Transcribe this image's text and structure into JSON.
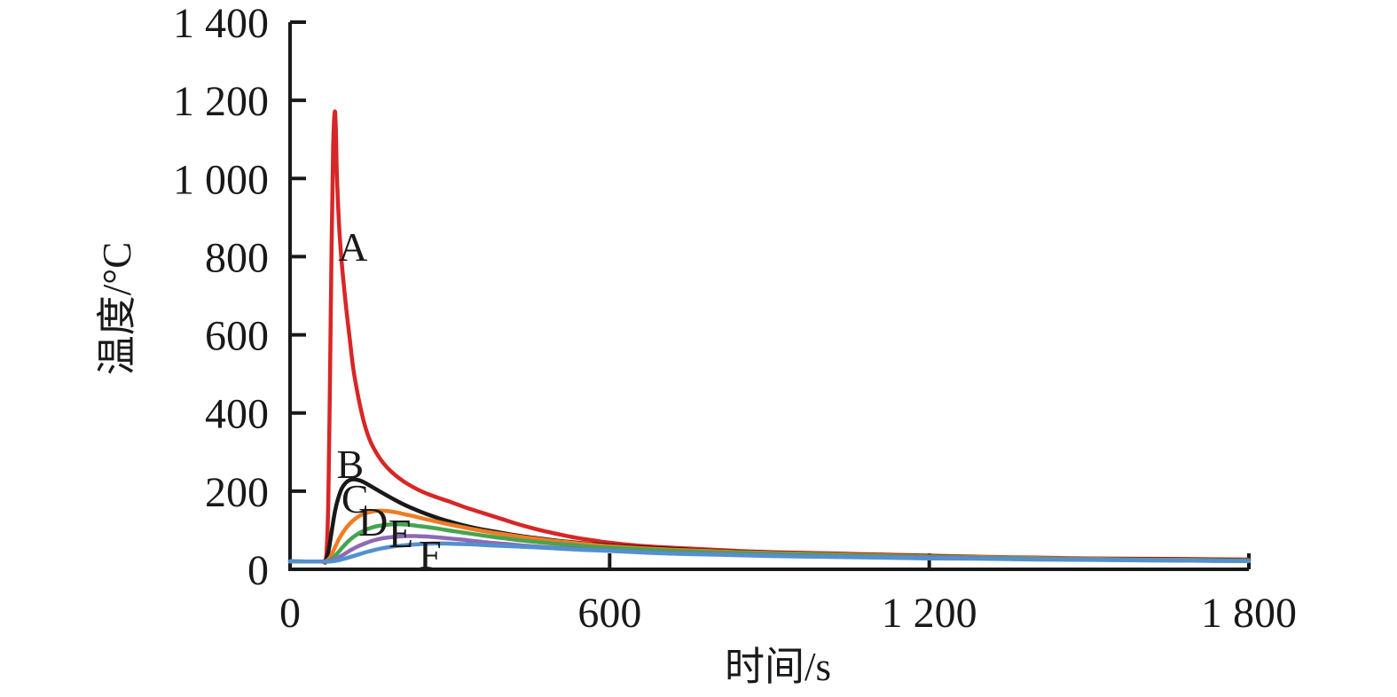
{
  "figure": {
    "background": "#ffffff",
    "axis_color": "#1a1818",
    "text_color": "#1a1818"
  },
  "chart_data": {
    "type": "line",
    "title": "",
    "xlabel": "时间/s",
    "ylabel": "温度/°C",
    "xlim": [
      0,
      1800
    ],
    "ylim": [
      0,
      1400
    ],
    "grid": false,
    "legend_position": "inline-curve-labels",
    "x_ticks": [
      {
        "value": 0,
        "label": "0"
      },
      {
        "value": 600,
        "label": "600"
      },
      {
        "value": 1200,
        "label": "1 200"
      },
      {
        "value": 1800,
        "label": "1 800"
      }
    ],
    "y_ticks": [
      {
        "value": 0,
        "label": "0"
      },
      {
        "value": 200,
        "label": "200"
      },
      {
        "value": 400,
        "label": "400"
      },
      {
        "value": 600,
        "label": "600"
      },
      {
        "value": 800,
        "label": "800"
      },
      {
        "value": 1000,
        "label": "1 000"
      },
      {
        "value": 1200,
        "label": "1 200"
      },
      {
        "value": 1400,
        "label": "1 400"
      }
    ],
    "series": [
      {
        "name": "A",
        "color": "#d82626",
        "peak": {
          "t": 84,
          "T": 1170
        },
        "label_pos": {
          "t": 118,
          "T": 826
        },
        "points": [
          [
            0,
            20
          ],
          [
            55,
            20
          ],
          [
            63,
            20
          ],
          [
            68,
            32
          ],
          [
            72,
            180
          ],
          [
            75,
            480
          ],
          [
            78,
            820
          ],
          [
            81,
            1080
          ],
          [
            84,
            1170
          ],
          [
            86,
            1130
          ],
          [
            88,
            1010
          ],
          [
            92,
            880
          ],
          [
            96,
            800
          ],
          [
            100,
            740
          ],
          [
            106,
            660
          ],
          [
            112,
            590
          ],
          [
            118,
            520
          ],
          [
            124,
            470
          ],
          [
            132,
            415
          ],
          [
            140,
            370
          ],
          [
            150,
            330
          ],
          [
            162,
            298
          ],
          [
            175,
            272
          ],
          [
            190,
            250
          ],
          [
            205,
            233
          ],
          [
            220,
            219
          ],
          [
            240,
            204
          ],
          [
            260,
            192
          ],
          [
            280,
            182
          ],
          [
            300,
            173
          ],
          [
            330,
            158
          ],
          [
            360,
            145
          ],
          [
            390,
            132
          ],
          [
            420,
            119
          ],
          [
            450,
            107
          ],
          [
            480,
            97
          ],
          [
            510,
            88
          ],
          [
            540,
            80
          ],
          [
            570,
            74
          ],
          [
            600,
            68
          ],
          [
            660,
            60
          ],
          [
            720,
            55
          ],
          [
            780,
            51
          ],
          [
            840,
            47
          ],
          [
            900,
            44
          ],
          [
            1000,
            41
          ],
          [
            1100,
            38
          ],
          [
            1200,
            35
          ],
          [
            1300,
            32
          ],
          [
            1400,
            30
          ],
          [
            1500,
            28
          ],
          [
            1600,
            27
          ],
          [
            1700,
            26
          ],
          [
            1800,
            25
          ]
        ]
      },
      {
        "name": "B",
        "color": "#1a1818",
        "peak": {
          "t": 122,
          "T": 230
        },
        "label_pos": {
          "t": 113,
          "T": 270
        },
        "points": [
          [
            0,
            20
          ],
          [
            58,
            20
          ],
          [
            66,
            22
          ],
          [
            72,
            45
          ],
          [
            78,
            95
          ],
          [
            84,
            145
          ],
          [
            90,
            180
          ],
          [
            97,
            207
          ],
          [
            105,
            222
          ],
          [
            113,
            229
          ],
          [
            122,
            230
          ],
          [
            132,
            227
          ],
          [
            145,
            218
          ],
          [
            160,
            206
          ],
          [
            178,
            192
          ],
          [
            195,
            179
          ],
          [
            215,
            165
          ],
          [
            235,
            153
          ],
          [
            255,
            142
          ],
          [
            278,
            131
          ],
          [
            300,
            122
          ],
          [
            330,
            111
          ],
          [
            360,
            102
          ],
          [
            390,
            95
          ],
          [
            420,
            88
          ],
          [
            450,
            82
          ],
          [
            480,
            77
          ],
          [
            510,
            72
          ],
          [
            540,
            68
          ],
          [
            570,
            64
          ],
          [
            600,
            61
          ],
          [
            660,
            56
          ],
          [
            720,
            52
          ],
          [
            780,
            48
          ],
          [
            840,
            45
          ],
          [
            900,
            43
          ],
          [
            1000,
            40
          ],
          [
            1100,
            37
          ],
          [
            1200,
            34
          ],
          [
            1300,
            31
          ],
          [
            1400,
            29
          ],
          [
            1500,
            27
          ],
          [
            1600,
            26
          ],
          [
            1700,
            25
          ],
          [
            1800,
            24
          ]
        ]
      },
      {
        "name": "C",
        "color": "#ee7c25",
        "peak": {
          "t": 167,
          "T": 150
        },
        "label_pos": {
          "t": 122,
          "T": 182
        },
        "points": [
          [
            0,
            20
          ],
          [
            60,
            20
          ],
          [
            68,
            21
          ],
          [
            75,
            30
          ],
          [
            83,
            52
          ],
          [
            92,
            78
          ],
          [
            102,
            100
          ],
          [
            113,
            118
          ],
          [
            125,
            132
          ],
          [
            138,
            142
          ],
          [
            152,
            147
          ],
          [
            167,
            150
          ],
          [
            182,
            149
          ],
          [
            198,
            146
          ],
          [
            215,
            141
          ],
          [
            232,
            136
          ],
          [
            252,
            129
          ],
          [
            272,
            123
          ],
          [
            295,
            116
          ],
          [
            320,
            109
          ],
          [
            350,
            101
          ],
          [
            380,
            94
          ],
          [
            410,
            88
          ],
          [
            440,
            82
          ],
          [
            470,
            77
          ],
          [
            500,
            72
          ],
          [
            530,
            68
          ],
          [
            560,
            64
          ],
          [
            600,
            59
          ],
          [
            660,
            54
          ],
          [
            720,
            50
          ],
          [
            780,
            47
          ],
          [
            840,
            44
          ],
          [
            900,
            42
          ],
          [
            1000,
            39
          ],
          [
            1100,
            36
          ],
          [
            1200,
            33
          ],
          [
            1300,
            31
          ],
          [
            1400,
            29
          ],
          [
            1500,
            27
          ],
          [
            1600,
            25
          ],
          [
            1700,
            24
          ],
          [
            1800,
            23
          ]
        ]
      },
      {
        "name": "D",
        "color": "#46a452",
        "peak": {
          "t": 197,
          "T": 115
        },
        "label_pos": {
          "t": 156,
          "T": 122
        },
        "points": [
          [
            0,
            20
          ],
          [
            61,
            20
          ],
          [
            70,
            21
          ],
          [
            78,
            26
          ],
          [
            87,
            38
          ],
          [
            97,
            54
          ],
          [
            108,
            70
          ],
          [
            120,
            84
          ],
          [
            133,
            95
          ],
          [
            147,
            104
          ],
          [
            162,
            110
          ],
          [
            177,
            113
          ],
          [
            192,
            115
          ],
          [
            207,
            115
          ],
          [
            222,
            114
          ],
          [
            240,
            111
          ],
          [
            258,
            108
          ],
          [
            278,
            104
          ],
          [
            300,
            99
          ],
          [
            325,
            94
          ],
          [
            350,
            89
          ],
          [
            380,
            83
          ],
          [
            410,
            78
          ],
          [
            440,
            73
          ],
          [
            470,
            69
          ],
          [
            500,
            65
          ],
          [
            530,
            62
          ],
          [
            560,
            58
          ],
          [
            600,
            55
          ],
          [
            660,
            51
          ],
          [
            720,
            47
          ],
          [
            780,
            44
          ],
          [
            840,
            42
          ],
          [
            900,
            40
          ],
          [
            1000,
            37
          ],
          [
            1100,
            34
          ],
          [
            1200,
            32
          ],
          [
            1300,
            30
          ],
          [
            1400,
            28
          ],
          [
            1500,
            26
          ],
          [
            1600,
            24
          ],
          [
            1700,
            23
          ],
          [
            1800,
            22
          ]
        ]
      },
      {
        "name": "E",
        "color": "#8d6ab7",
        "peak": {
          "t": 228,
          "T": 85
        },
        "label_pos": {
          "t": 208,
          "T": 93
        },
        "points": [
          [
            0,
            20
          ],
          [
            62,
            20
          ],
          [
            72,
            21
          ],
          [
            82,
            24
          ],
          [
            92,
            31
          ],
          [
            103,
            40
          ],
          [
            115,
            50
          ],
          [
            128,
            59
          ],
          [
            142,
            67
          ],
          [
            157,
            74
          ],
          [
            172,
            79
          ],
          [
            188,
            82
          ],
          [
            204,
            84
          ],
          [
            220,
            85
          ],
          [
            236,
            85
          ],
          [
            255,
            84
          ],
          [
            275,
            82
          ],
          [
            298,
            79
          ],
          [
            322,
            76
          ],
          [
            348,
            72
          ],
          [
            375,
            68
          ],
          [
            405,
            65
          ],
          [
            435,
            61
          ],
          [
            465,
            58
          ],
          [
            495,
            55
          ],
          [
            525,
            53
          ],
          [
            560,
            50
          ],
          [
            600,
            48
          ],
          [
            660,
            44
          ],
          [
            720,
            41
          ],
          [
            780,
            39
          ],
          [
            840,
            37
          ],
          [
            900,
            36
          ],
          [
            1000,
            33
          ],
          [
            1100,
            31
          ],
          [
            1200,
            30
          ],
          [
            1300,
            28
          ],
          [
            1400,
            26
          ],
          [
            1500,
            25
          ],
          [
            1600,
            23
          ],
          [
            1700,
            22
          ],
          [
            1800,
            21
          ]
        ]
      },
      {
        "name": "F",
        "color": "#5390d0",
        "peak": {
          "t": 280,
          "T": 66
        },
        "label_pos": {
          "t": 263,
          "T": 39
        },
        "points": [
          [
            0,
            20
          ],
          [
            64,
            20
          ],
          [
            75,
            20
          ],
          [
            87,
            22
          ],
          [
            99,
            26
          ],
          [
            112,
            31
          ],
          [
            126,
            37
          ],
          [
            141,
            43
          ],
          [
            157,
            49
          ],
          [
            174,
            54
          ],
          [
            192,
            58
          ],
          [
            211,
            61
          ],
          [
            230,
            63
          ],
          [
            250,
            65
          ],
          [
            270,
            66
          ],
          [
            292,
            66
          ],
          [
            315,
            65
          ],
          [
            340,
            64
          ],
          [
            368,
            62
          ],
          [
            398,
            60
          ],
          [
            430,
            58
          ],
          [
            462,
            56
          ],
          [
            495,
            54
          ],
          [
            530,
            51
          ],
          [
            565,
            49
          ],
          [
            600,
            47
          ],
          [
            660,
            43
          ],
          [
            720,
            40
          ],
          [
            780,
            38
          ],
          [
            840,
            36
          ],
          [
            900,
            34
          ],
          [
            1000,
            32
          ],
          [
            1100,
            30
          ],
          [
            1200,
            28
          ],
          [
            1300,
            27
          ],
          [
            1400,
            25
          ],
          [
            1500,
            24
          ],
          [
            1600,
            23
          ],
          [
            1700,
            22
          ],
          [
            1800,
            21
          ]
        ]
      }
    ]
  }
}
